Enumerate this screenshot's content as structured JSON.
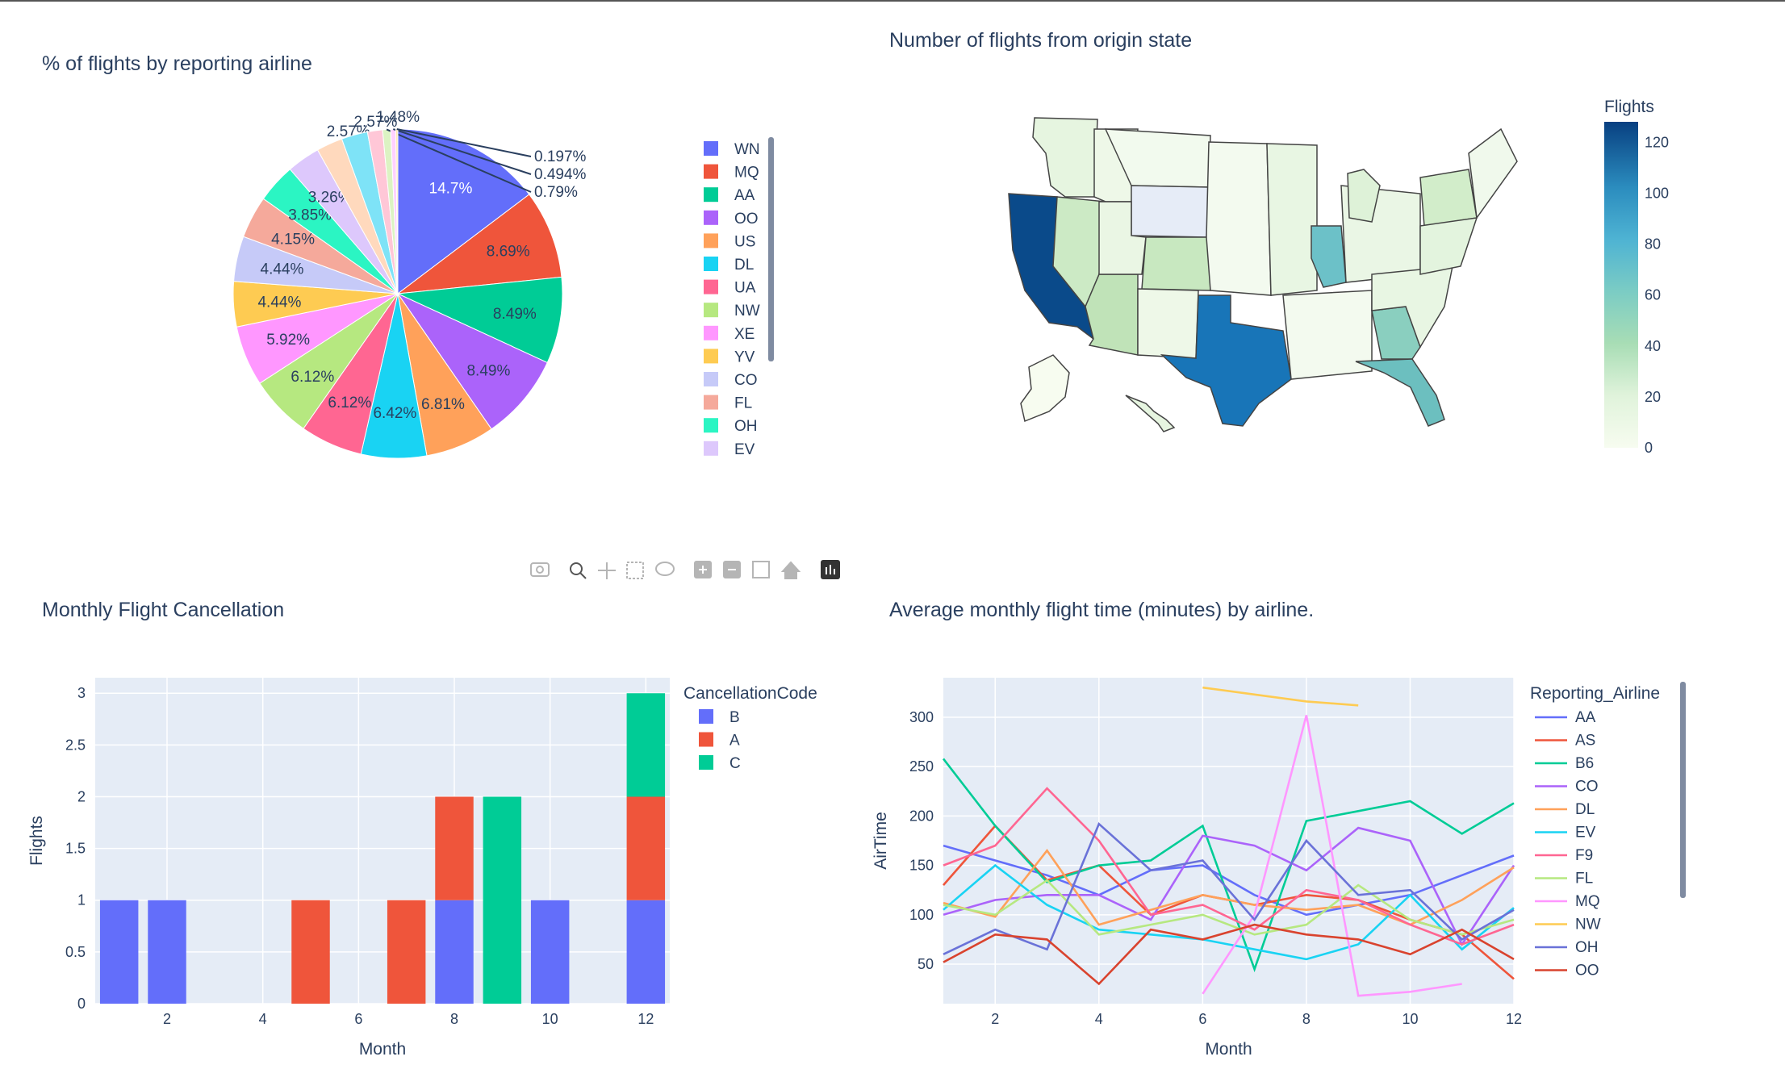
{
  "colors": {
    "plot_bg": "#e5ecf6",
    "title_text": "#2a3f5f",
    "scrollbar": "#7f8ba1",
    "gridline": "#ffffff"
  },
  "modebar": {
    "buttons": [
      "camera-icon",
      "zoom-icon",
      "pan-icon",
      "box-select-icon",
      "lasso-select-icon",
      "zoom-in-icon",
      "zoom-out-icon",
      "autoscale-icon",
      "reset-axes-icon",
      "plotly-logo-icon"
    ]
  },
  "chart_data": [
    {
      "type": "pie",
      "title": "% of flights by reporting airline",
      "legend_placement": "right, scrollable",
      "slices": [
        {
          "label": "WN",
          "pct": 14.7,
          "text": "14.7%",
          "color": "#636efa"
        },
        {
          "label": "MQ",
          "pct": 8.69,
          "text": "8.69%",
          "color": "#EF553B"
        },
        {
          "label": "AA",
          "pct": 8.49,
          "text": "8.49%",
          "color": "#00cc96"
        },
        {
          "label": "OO",
          "pct": 8.49,
          "text": "8.49%",
          "color": "#ab63fa"
        },
        {
          "label": "US",
          "pct": 6.81,
          "text": "6.81%",
          "color": "#FFA15A"
        },
        {
          "label": "DL",
          "pct": 6.42,
          "text": "6.42%",
          "color": "#19d3f3"
        },
        {
          "label": "UA",
          "pct": 6.12,
          "text": "6.12%",
          "color": "#FF6692"
        },
        {
          "label": "NW",
          "pct": 6.12,
          "text": "6.12%",
          "color": "#B6E880"
        },
        {
          "label": "XE",
          "pct": 5.92,
          "text": "5.92%",
          "color": "#FF97FF"
        },
        {
          "label": "YV",
          "pct": 4.44,
          "text": "4.44%",
          "color": "#FECB52"
        },
        {
          "label": "CO",
          "pct": 4.44,
          "text": "4.44%",
          "color": "#c6caf8"
        },
        {
          "label": "FL",
          "pct": 4.15,
          "text": "4.15%",
          "color": "#f5a99b"
        },
        {
          "label": "OH",
          "pct": 3.85,
          "text": "3.85%",
          "color": "#2bf5c3"
        },
        {
          "label": "EV",
          "pct": 3.26,
          "text": "3.26%",
          "color": "#ddc8fc"
        },
        {
          "label": "",
          "pct": 2.57,
          "text": "2.57%",
          "color": "#ffd9bd"
        },
        {
          "label": "",
          "pct": 2.57,
          "text": "2.57%",
          "color": "#7ee3f7"
        },
        {
          "label": "",
          "pct": 1.48,
          "text": "1.48%",
          "color": "#ffc7d7"
        },
        {
          "label": "",
          "pct": 0.79,
          "text": "0.79%",
          "color": "#dcf3c3"
        },
        {
          "label": "",
          "pct": 0.494,
          "text": "0.494%",
          "color": "#ffd1ff"
        },
        {
          "label": "",
          "pct": 0.197,
          "text": "0.197%",
          "color": "#fee8ae"
        }
      ]
    },
    {
      "type": "choropleth",
      "title": "Number of flights from origin state",
      "colorbar_title": "Flights",
      "colorbar_ticks": [
        0,
        20,
        40,
        60,
        80,
        100,
        120
      ],
      "colorscale": [
        "#f7fcf0",
        "#e0f3db",
        "#ccebc5",
        "#a8ddb5",
        "#7bccc4",
        "#4eb3d3",
        "#2b8cbe",
        "#0868ac",
        "#084081"
      ],
      "range": [
        0,
        128
      ],
      "states": [
        {
          "state": "CA",
          "value": 125
        },
        {
          "state": "TX",
          "value": 100
        },
        {
          "state": "IL",
          "value": 66
        },
        {
          "state": "FL",
          "value": 62
        },
        {
          "state": "GA",
          "value": 52
        },
        {
          "state": "AZ",
          "value": 28
        },
        {
          "state": "CO",
          "value": 24
        },
        {
          "state": "NV",
          "value": 22
        },
        {
          "state": "NY",
          "value": 22
        }
      ]
    },
    {
      "type": "bar",
      "barmode": "stack",
      "title": "Monthly Flight Cancellation",
      "xlabel": "Month",
      "ylabel": "Flights",
      "xlim": [
        0.5,
        12.5
      ],
      "ylim": [
        0,
        3.15
      ],
      "xticks": [
        2,
        4,
        6,
        8,
        10,
        12
      ],
      "yticks": [
        0,
        0.5,
        1,
        1.5,
        2,
        2.5,
        3
      ],
      "legend_title": "CancellationCode",
      "legend_placement": "top-right outside",
      "categories": [
        1,
        2,
        3,
        4,
        5,
        6,
        7,
        8,
        9,
        10,
        11,
        12
      ],
      "series": [
        {
          "name": "B",
          "color": "#636efa",
          "values": [
            1,
            1,
            0,
            0,
            0,
            0,
            0,
            1,
            0,
            1,
            0,
            1
          ]
        },
        {
          "name": "A",
          "color": "#EF553B",
          "values": [
            0,
            0,
            0,
            0,
            1,
            0,
            1,
            1,
            0,
            0,
            0,
            1
          ]
        },
        {
          "name": "C",
          "color": "#00cc96",
          "values": [
            0,
            0,
            0,
            0,
            0,
            0,
            0,
            0,
            2,
            0,
            0,
            1
          ]
        }
      ]
    },
    {
      "type": "line",
      "title": "Average monthly flight time (minutes) by airline.",
      "xlabel": "Month",
      "ylabel": "AirTime",
      "xlim": [
        1,
        12
      ],
      "ylim": [
        10,
        340
      ],
      "xticks": [
        2,
        4,
        6,
        8,
        10,
        12
      ],
      "yticks": [
        50,
        100,
        150,
        200,
        250,
        300
      ],
      "legend_title": "Reporting_Airline",
      "legend_placement": "right, scrollable",
      "x": [
        1,
        2,
        3,
        4,
        5,
        6,
        7,
        8,
        9,
        10,
        11,
        12
      ],
      "series": [
        {
          "name": "AA",
          "color": "#636efa",
          "values": [
            170,
            155,
            140,
            120,
            145,
            150,
            120,
            100,
            110,
            120,
            140,
            160
          ]
        },
        {
          "name": "AS",
          "color": "#EF553B",
          "values": [
            130,
            190,
            135,
            150,
            100,
            120,
            110,
            120,
            115,
            95,
            80,
            35
          ]
        },
        {
          "name": "B6",
          "color": "#00cc96",
          "values": [
            258,
            190,
            133,
            150,
            155,
            190,
            45,
            195,
            205,
            215,
            182,
            213
          ]
        },
        {
          "name": "CO",
          "color": "#ab63fa",
          "values": [
            100,
            115,
            120,
            120,
            95,
            180,
            170,
            145,
            188,
            175,
            70,
            150
          ]
        },
        {
          "name": "DL",
          "color": "#FFA15A",
          "values": [
            112,
            98,
            165,
            90,
            105,
            120,
            110,
            105,
            110,
            90,
            115,
            148
          ]
        },
        {
          "name": "EV",
          "color": "#19d3f3",
          "values": [
            105,
            150,
            110,
            85,
            80,
            75,
            65,
            55,
            70,
            120,
            65,
            107
          ]
        },
        {
          "name": "F9",
          "color": "#FF6692",
          "values": [
            150,
            170,
            228,
            175,
            100,
            110,
            85,
            125,
            115,
            90,
            70,
            90
          ]
        },
        {
          "name": "FL",
          "color": "#B6E880",
          "values": [
            110,
            100,
            135,
            80,
            90,
            100,
            80,
            90,
            130,
            95,
            80,
            95
          ]
        },
        {
          "name": "MQ",
          "color": "#FF97FF",
          "values": [
            null,
            null,
            null,
            null,
            null,
            20,
            100,
            302,
            18,
            22,
            30,
            null
          ]
        },
        {
          "name": "NW",
          "color": "#FECB52",
          "values": [
            null,
            null,
            null,
            null,
            null,
            330,
            323,
            316,
            312,
            null,
            null,
            null
          ]
        },
        {
          "name": "OH",
          "color": "#6a72d8",
          "values": [
            60,
            85,
            65,
            192,
            145,
            155,
            95,
            175,
            120,
            125,
            75,
            105
          ]
        },
        {
          "name": "OO",
          "color": "#d9432e",
          "values": [
            52,
            80,
            75,
            30,
            85,
            75,
            90,
            80,
            75,
            60,
            85,
            55
          ]
        }
      ]
    }
  ]
}
